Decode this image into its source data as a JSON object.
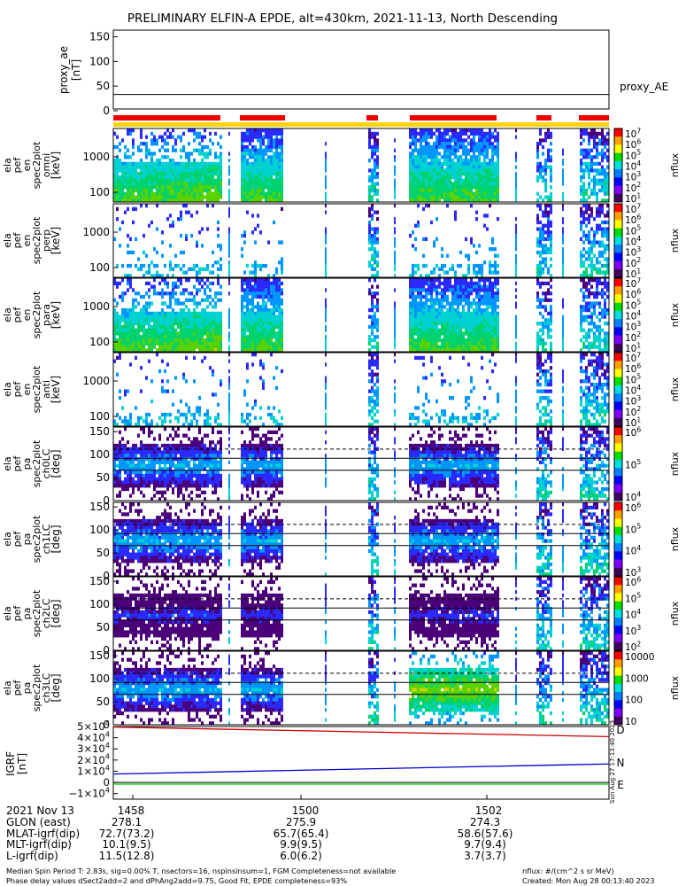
{
  "title": "PRELIMINARY ELFIN-A EPDE, alt=430km, 2021-11-13, North Descending",
  "chart_data": [
    {
      "type": "line",
      "panel": "proxy_ae",
      "ylabel": [
        "proxy_ae",
        "[nT]"
      ],
      "yticks": [
        "150",
        "100",
        "50",
        "0"
      ],
      "ylim": [
        0,
        160
      ],
      "legend": "proxy_AE",
      "series": [
        {
          "name": "proxy_AE",
          "values": [
            33,
            33
          ],
          "color": "#000000"
        }
      ]
    },
    {
      "type": "heatmap",
      "panel": "omni",
      "ylabel": [
        "ela",
        "pef",
        "en",
        "spec2plot",
        "omni",
        "[keV]"
      ],
      "yticks": [
        "1000",
        "100"
      ],
      "colorbar_ticks": [
        "10^7",
        "10^6",
        "10^5",
        "10^4",
        "10^3",
        "10^2",
        "10^1"
      ],
      "colorbar_label": "nflux"
    },
    {
      "type": "heatmap",
      "panel": "perp",
      "ylabel": [
        "ela",
        "pef",
        "en",
        "spec2plot",
        "perp",
        "[keV]"
      ],
      "yticks": [
        "1000",
        "100"
      ],
      "colorbar_ticks": [
        "10^7",
        "10^6",
        "10^5",
        "10^4",
        "10^3",
        "10^2",
        "10^1"
      ],
      "colorbar_label": "nflux"
    },
    {
      "type": "heatmap",
      "panel": "para",
      "ylabel": [
        "ela",
        "pef",
        "en",
        "spec2plot",
        "para",
        "[keV]"
      ],
      "yticks": [
        "1000",
        "100"
      ],
      "colorbar_ticks": [
        "10^7",
        "10^6",
        "10^5",
        "10^4",
        "10^3",
        "10^2",
        "10^1"
      ],
      "colorbar_label": "nflux"
    },
    {
      "type": "heatmap",
      "panel": "anti",
      "ylabel": [
        "ela",
        "pef",
        "en",
        "spec2plot",
        "anti",
        "[keV]"
      ],
      "yticks": [
        "1000",
        "100"
      ],
      "colorbar_ticks": [
        "10^7",
        "10^6",
        "10^5",
        "10^4",
        "10^3",
        "10^2",
        "10^1"
      ],
      "colorbar_label": "nflux"
    },
    {
      "type": "heatmap",
      "panel": "ch0LC",
      "ylabel": [
        "ela",
        "pef",
        "pa",
        "spec2plot",
        "ch0LC",
        "[deg]"
      ],
      "yticks": [
        "150",
        "100",
        "50",
        "0"
      ],
      "colorbar_ticks": [
        "10^6",
        "10^5",
        "10^4"
      ],
      "colorbar_label": "nflux"
    },
    {
      "type": "heatmap",
      "panel": "ch1LC",
      "ylabel": [
        "ela",
        "pef",
        "pa",
        "spec2plot",
        "ch1LC",
        "[deg]"
      ],
      "yticks": [
        "150",
        "100",
        "50",
        "0"
      ],
      "colorbar_ticks": [
        "10^6",
        "10^5",
        "10^4",
        "10^3"
      ],
      "colorbar_label": "nflux"
    },
    {
      "type": "heatmap",
      "panel": "ch2LC",
      "ylabel": [
        "ela",
        "pef",
        "pa",
        "spec2plot",
        "ch2LC",
        "[deg]"
      ],
      "yticks": [
        "150",
        "100",
        "50",
        "0"
      ],
      "colorbar_ticks": [
        "10^6",
        "10^5",
        "10^4",
        "10^3",
        "10^2"
      ],
      "colorbar_label": "nflux"
    },
    {
      "type": "heatmap",
      "panel": "ch3LC",
      "ylabel": [
        "ela",
        "pef",
        "pa",
        "spec2plot",
        "ch3LC",
        "[deg]"
      ],
      "yticks": [
        "150",
        "100",
        "50",
        "0"
      ],
      "colorbar_ticks": [
        "10000",
        "1000",
        "100",
        "10"
      ],
      "colorbar_label": "nflux"
    },
    {
      "type": "line",
      "panel": "IGRF",
      "ylabel": [
        "IGRF",
        "[nT]"
      ],
      "yticks": [
        "5×10^4",
        "4×10^4",
        "3×10^4",
        "2×10^4",
        "1×10^4",
        "0",
        "−1×10^4"
      ],
      "ylim": [
        -15000,
        50000
      ],
      "x": [
        0,
        1
      ],
      "series": [
        {
          "name": "D",
          "values": [
            49500,
            41000
          ],
          "color": "#cc0000"
        },
        {
          "name": "N",
          "values": [
            7500,
            16500
          ],
          "color": "#0000cc"
        },
        {
          "name": "E",
          "values": [
            -1500,
            -1500
          ],
          "color": "#00cc00"
        }
      ]
    }
  ],
  "time_axis": {
    "row_labels": [
      "2021 Nov 13",
      "GLON (east)",
      "MLAT-igrf(dip)",
      "MLT-igrf(dip)",
      "L-igrf(dip)"
    ],
    "columns": [
      {
        "values": [
          "1458",
          "278.1",
          "72.7(73.2)",
          "10.1(9.5)",
          "11.5(12.8)"
        ]
      },
      {
        "values": [
          "1500",
          "275.9",
          "65.7(65.4)",
          "9.9(9.5)",
          "6.0(6.2)"
        ]
      },
      {
        "values": [
          "1502",
          "274.3",
          "58.6(57.6)",
          "9.7(9.4)",
          "3.7(3.7)"
        ]
      }
    ]
  },
  "timestamp_vertical": "Sun Aug 27 17:13:40 2023",
  "footer": {
    "line1_left": "Median Spin Period T: 2.83s, sig=0.00% T, nsectors=16, nspinsinsum=1, FGM Completeness=not available",
    "line1_right": "nflux: #/(cm^2 s sr MeV)",
    "line2_left": "Phase delay values dSect2add=2 and dPhAng2add=9.75, Good Fit, EPDE completeness=93%",
    "line2_right": "Created: Mon Aug 28 00:13:40 2023"
  },
  "colors": {
    "science_bar": "#ee0000",
    "fast_bar": "#ffd400",
    "jet_palette": [
      "#4b007a",
      "#2a2aff",
      "#0096ff",
      "#00d2d2",
      "#00d26e",
      "#5ad200",
      "#d2d200",
      "#ffa000",
      "#e60000"
    ]
  }
}
